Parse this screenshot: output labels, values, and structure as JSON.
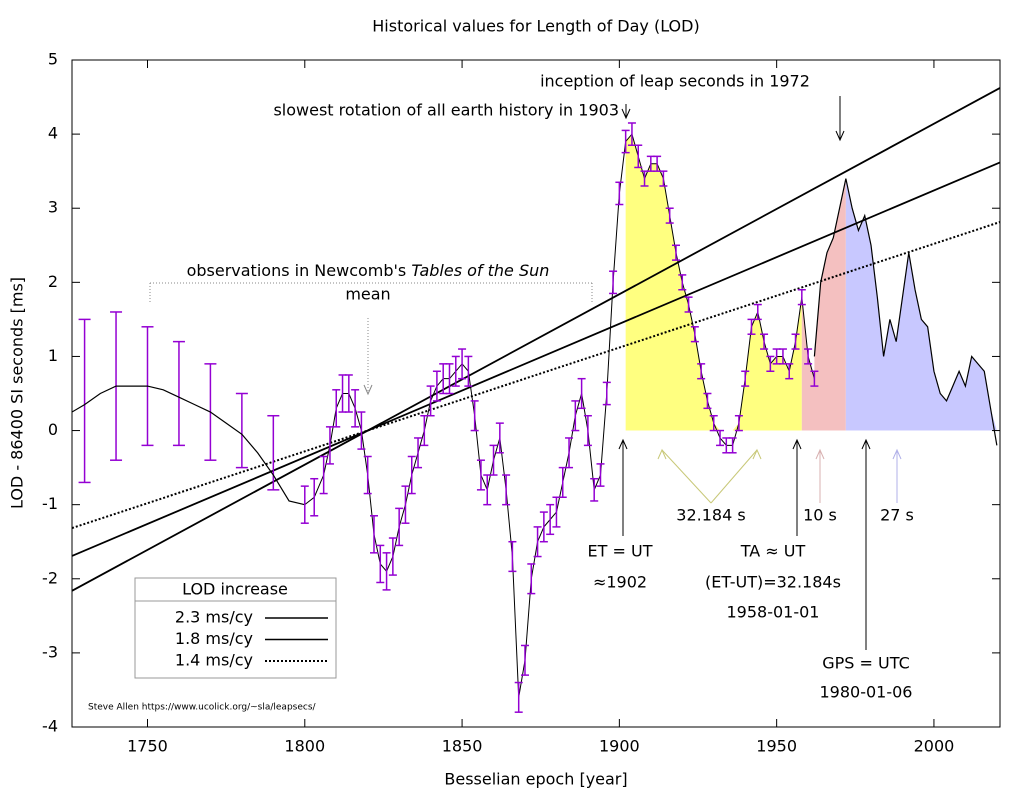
{
  "chart_data": {
    "type": "line",
    "title": "Historical values for Length of Day (LOD)",
    "x_label": "Besselian epoch [year]",
    "y_label": "LOD - 86400 SI seconds [ms]",
    "xlim": [
      1726,
      2021
    ],
    "ylim": [
      -4,
      5
    ],
    "xticks": [
      1750,
      1800,
      1850,
      1900,
      1950,
      2000
    ],
    "yticks": [
      -4,
      -3,
      -2,
      -1,
      0,
      1,
      2,
      3,
      4,
      5
    ],
    "series": [
      {
        "color": "#9400d3",
        "style": "errorbar",
        "x": [
          1730,
          1740,
          1750,
          1760,
          1770,
          1780,
          1790
        ],
        "values": [
          0.4,
          0.6,
          0.6,
          0.5,
          0.25,
          0,
          -0.3
        ],
        "errors": [
          1.1,
          1.0,
          0.8,
          0.7,
          0.65,
          0.5,
          0.5
        ]
      },
      {
        "color": "#000000",
        "style": "line",
        "x": [
          1726,
          1730,
          1735,
          1740,
          1745,
          1750,
          1755,
          1760,
          1765,
          1770,
          1775,
          1780,
          1785,
          1790,
          1795,
          1800
        ],
        "values": [
          0.25,
          0.35,
          0.5,
          0.6,
          0.6,
          0.6,
          0.55,
          0.45,
          0.35,
          0.25,
          0.1,
          -0.05,
          -0.3,
          -0.6,
          -0.95,
          -1.0
        ]
      },
      {
        "color": "#9400d3",
        "style": "errorline",
        "x": [
          1800,
          1803,
          1806,
          1808,
          1810,
          1812,
          1814,
          1816,
          1818,
          1820,
          1822,
          1824,
          1826,
          1828,
          1830,
          1832,
          1834,
          1836,
          1838,
          1840,
          1842,
          1844,
          1846,
          1848,
          1850,
          1852,
          1854,
          1856,
          1858,
          1860,
          1862,
          1864,
          1866,
          1868,
          1870,
          1872,
          1874,
          1876,
          1878,
          1880,
          1882,
          1884,
          1886,
          1888,
          1890,
          1892,
          1894,
          1896,
          1898,
          1900,
          1902,
          1904,
          1906,
          1908,
          1910,
          1912,
          1914,
          1916,
          1918,
          1920,
          1922,
          1924,
          1926,
          1928,
          1930,
          1932,
          1934,
          1936,
          1938,
          1940,
          1942,
          1944,
          1946,
          1948,
          1950,
          1952,
          1954,
          1956,
          1958,
          1960,
          1962
        ],
        "values": [
          -1.0,
          -0.9,
          -0.6,
          -0.2,
          0.3,
          0.5,
          0.5,
          0.3,
          0.0,
          -0.6,
          -1.4,
          -1.8,
          -1.9,
          -1.7,
          -1.3,
          -1.0,
          -0.6,
          -0.3,
          0.0,
          0.4,
          0.6,
          0.7,
          0.7,
          0.8,
          0.9,
          0.8,
          0.2,
          -0.6,
          -0.8,
          -0.4,
          -0.1,
          -0.8,
          -1.7,
          -3.6,
          -3.1,
          -2.0,
          -1.5,
          -1.3,
          -1.2,
          -1.1,
          -0.7,
          -0.3,
          0.2,
          0.5,
          0.0,
          -0.8,
          -0.6,
          0.5,
          2.0,
          3.2,
          3.9,
          4.0,
          3.7,
          3.4,
          3.6,
          3.6,
          3.4,
          2.9,
          2.4,
          2.0,
          1.7,
          1.3,
          0.8,
          0.4,
          0.1,
          -0.1,
          -0.2,
          -0.2,
          0.1,
          0.7,
          1.4,
          1.6,
          1.2,
          0.9,
          1.0,
          1.0,
          0.8,
          1.2,
          1.8,
          1.0,
          0.7
        ],
        "errors": [
          0.25,
          0.25,
          0.25,
          0.25,
          0.25,
          0.25,
          0.25,
          0.25,
          0.25,
          0.25,
          0.25,
          0.25,
          0.25,
          0.25,
          0.25,
          0.25,
          0.25,
          0.2,
          0.2,
          0.2,
          0.2,
          0.2,
          0.2,
          0.2,
          0.2,
          0.2,
          0.2,
          0.2,
          0.2,
          0.2,
          0.2,
          0.2,
          0.2,
          0.2,
          0.2,
          0.2,
          0.2,
          0.2,
          0.2,
          0.2,
          0.2,
          0.2,
          0.2,
          0.2,
          0.2,
          0.15,
          0.15,
          0.15,
          0.15,
          0.15,
          0.15,
          0.15,
          0.15,
          0.1,
          0.1,
          0.1,
          0.1,
          0.1,
          0.1,
          0.1,
          0.1,
          0.1,
          0.1,
          0.1,
          0.1,
          0.1,
          0.1,
          0.1,
          0.1,
          0.1,
          0.1,
          0.1,
          0.1,
          0.1,
          0.1,
          0.1,
          0.1,
          0.1,
          0.1,
          0.1,
          0.1
        ]
      },
      {
        "color": "#000000",
        "style": "line",
        "x": [
          1962,
          1964,
          1966,
          1968,
          1970,
          1972,
          1974,
          1976,
          1978,
          1980,
          1982,
          1984,
          1986,
          1988,
          1990,
          1992,
          1994,
          1996,
          1998,
          2000,
          2002,
          2004,
          2006,
          2008,
          2010,
          2012,
          2014,
          2016,
          2018,
          2020
        ],
        "values": [
          1.0,
          2.0,
          2.4,
          2.6,
          3.0,
          3.4,
          3.0,
          2.7,
          2.9,
          2.5,
          1.8,
          1.0,
          1.5,
          1.2,
          1.8,
          2.4,
          1.9,
          1.5,
          1.4,
          0.8,
          0.5,
          0.4,
          0.6,
          0.8,
          0.6,
          1.0,
          0.9,
          0.8,
          0.3,
          -0.2
        ]
      }
    ],
    "regions": [
      {
        "from": 1902,
        "to": 1958,
        "color": "#ffff80"
      },
      {
        "from": 1958,
        "to": 1972,
        "color": "#f4c0c0"
      },
      {
        "from": 1972,
        "to": 2021,
        "color": "#c8c8ff"
      }
    ],
    "trends": [
      {
        "name": "2.3 ms/cy",
        "slope": 2.3,
        "pivot": 1820,
        "dash": false
      },
      {
        "name": "1.8 ms/cy",
        "slope": 1.8,
        "pivot": 1820,
        "dash": false
      },
      {
        "name": "1.4 ms/cy",
        "slope": 1.4,
        "pivot": 1820,
        "dash": true
      }
    ],
    "legend_title": "LOD increase",
    "legend_position": "lower left",
    "annotations": {
      "leap": "inception of leap seconds in 1972",
      "slowest": "slowest rotation of all earth history in 1903",
      "newcomb": "observations in Newcomb's ",
      "newcomb_italic": "Tables of the Sun",
      "mean": "mean",
      "s32": "32.184 s",
      "s10": "10 s",
      "s27": "27 s",
      "et1": "ET = UT",
      "et2": "≈1902",
      "ta1": "TA ≈ UT",
      "ta2": "(ET-UT)=32.184s",
      "ta3": "1958-01-01",
      "gps1": "GPS = UTC",
      "gps2": "1980-01-06",
      "credit": "Steve Allen  https://www.ucolick.org/~sla/leapsecs/"
    }
  }
}
